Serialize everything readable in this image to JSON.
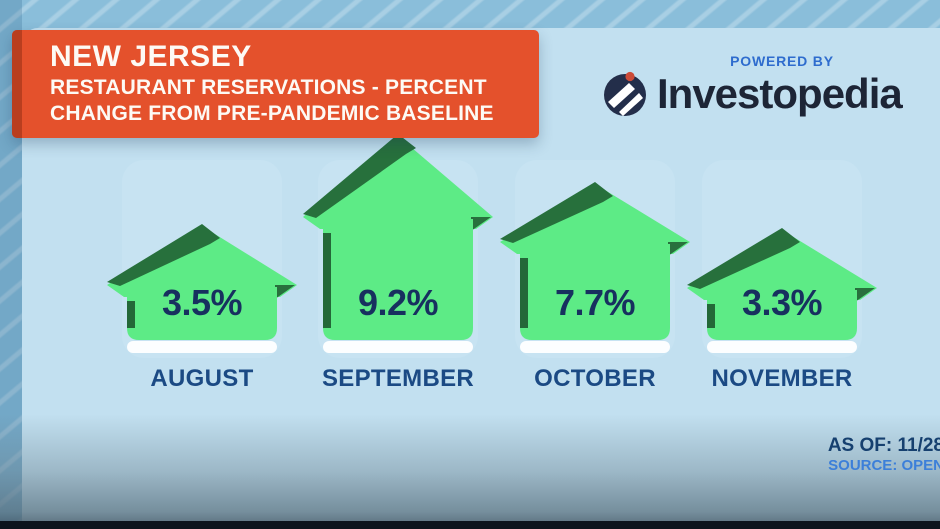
{
  "header": {
    "region": "NEW JERSEY",
    "subtitle_line1": "RESTAURANT RESERVATIONS - PERCENT",
    "subtitle_line2": "CHANGE FROM PRE-PANDEMIC BASELINE"
  },
  "logo": {
    "powered_by": "POWERED BY",
    "brand": "Investopedia"
  },
  "chart_data": {
    "type": "bar",
    "title": "NEW JERSEY RESTAURANT RESERVATIONS - PERCENT CHANGE FROM PRE-PANDEMIC BASELINE",
    "categories": [
      "AUGUST",
      "SEPTEMBER",
      "OCTOBER",
      "NOVEMBER"
    ],
    "values": [
      3.5,
      9.2,
      7.7,
      3.3
    ],
    "value_labels": [
      "3.5%",
      "9.2%",
      "7.7%",
      "3.3%"
    ],
    "unit": "percent",
    "bar_style": "house-pictogram",
    "ylim": [
      0,
      10
    ],
    "legend": false,
    "grid": false
  },
  "footer": {
    "as_of": "AS OF: 11/28",
    "source": "SOURCE: OPEN"
  },
  "colors": {
    "accent_orange": "#e4512c",
    "accent_orange_dark": "#b93e1f",
    "house_green": "#5deb86",
    "house_green_dark": "#27703c",
    "house_green_shadow": "#1e5a30",
    "card_blue": "#c7e3f2",
    "background_blue": "#8abeda",
    "panel_blue": "#c2e0f0",
    "navy_text": "#17305f",
    "month_text": "#1b4a84",
    "powered_by_blue": "#2e6cce",
    "source_blue": "#3c7fd9",
    "brand_navy": "#1d2536",
    "logo_dot_red": "#cc4b38"
  }
}
